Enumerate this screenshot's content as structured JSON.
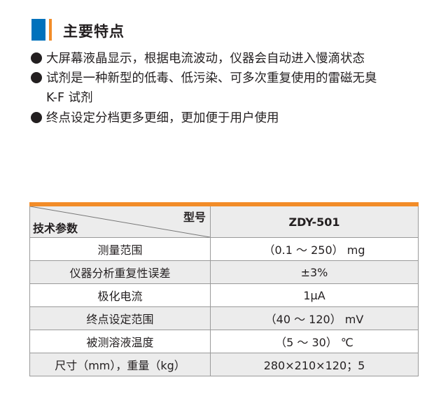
{
  "section": {
    "title": "主要特点",
    "accent_colors": [
      "#0071bc",
      "#f28c28"
    ]
  },
  "features": [
    {
      "lines": [
        "大屏幕液晶显示，根据电流波动，仪器会自动进入慢滴状态"
      ]
    },
    {
      "lines": [
        "试剂是一种新型的低毒、低污染、可多次重复使用的雷磁无臭",
        "K-F 试剂"
      ]
    },
    {
      "lines": [
        "终点设定分档更多更细，更加便于用户使用"
      ]
    }
  ],
  "table": {
    "header": {
      "model_label": "型号",
      "param_label": "技术参数",
      "model": "ZDY-501"
    },
    "rows": [
      {
        "param": "测量范围",
        "value": "（0.1 ～ 250） mg"
      },
      {
        "param": "仪器分析重复性误差",
        "value": "±3%"
      },
      {
        "param": "极化电流",
        "value": "1μA"
      },
      {
        "param": "终点设定范围",
        "value": "（40 ～ 120） mV"
      },
      {
        "param": "被测溶液温度",
        "value": "（5 ～ 30） ℃"
      },
      {
        "param": "尺寸（mm），重量（kg）",
        "value": "280×210×120；5"
      }
    ]
  }
}
